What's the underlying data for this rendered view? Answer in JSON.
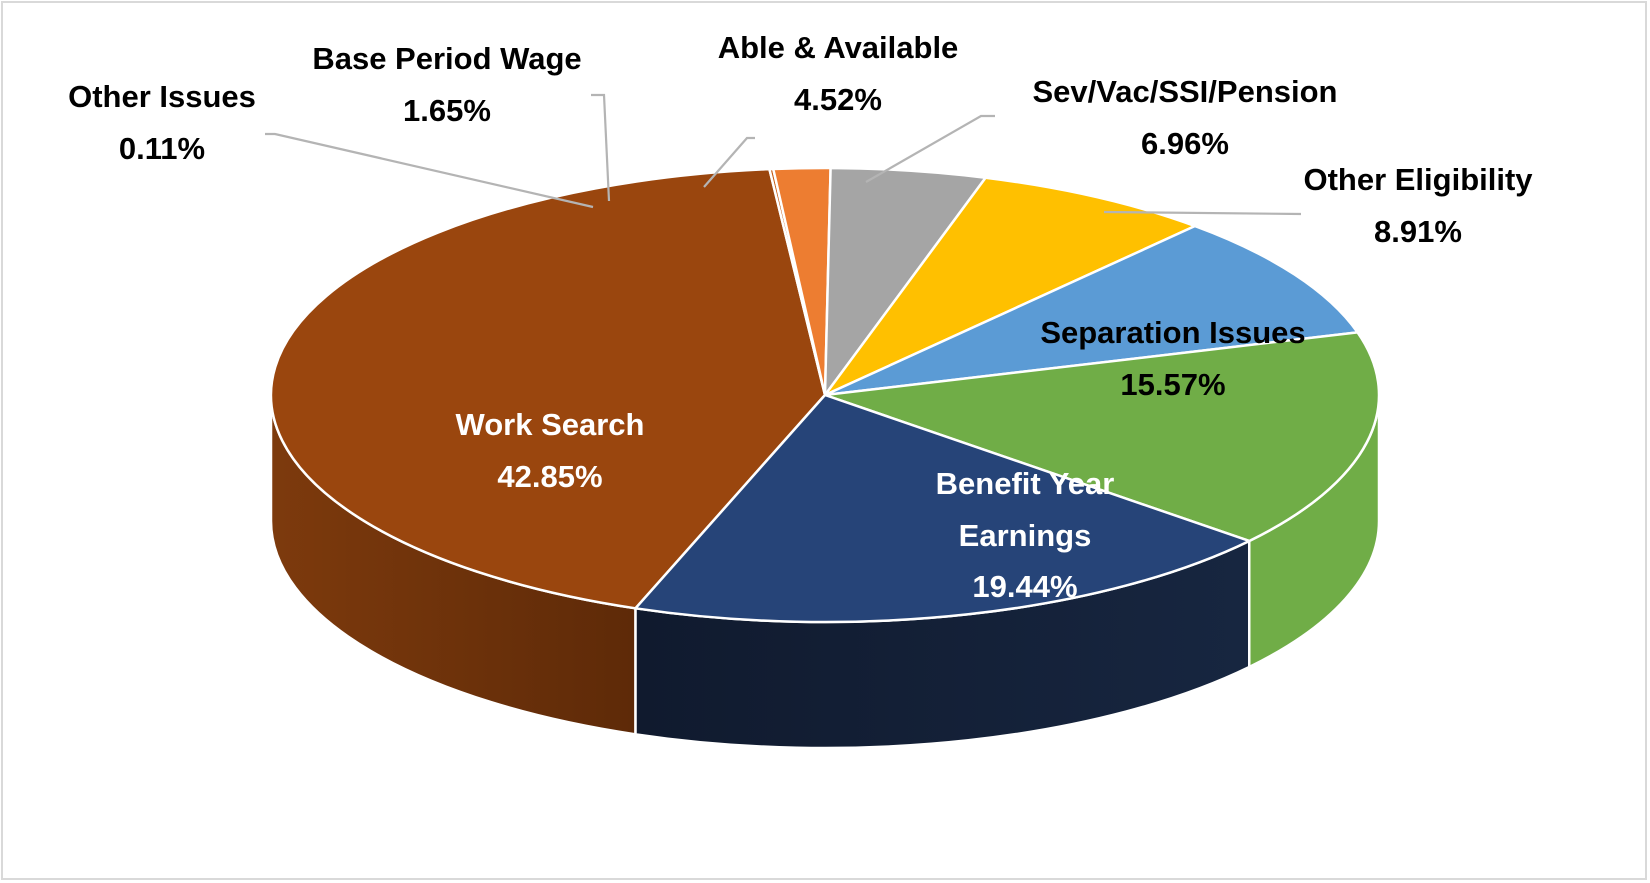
{
  "chart_data": {
    "type": "pie",
    "style": "3d-exploded-perspective",
    "title": "",
    "slices": [
      {
        "label": "Work Search",
        "value": 42.85,
        "display": "42.85%",
        "color": "#9a460e",
        "label_color": "#ffffff"
      },
      {
        "label": "Other Issues",
        "value": 0.11,
        "display": "0.11%",
        "color": "#c55a11",
        "label_color": "#000000"
      },
      {
        "label": "Base Period Wage",
        "value": 1.65,
        "display": "1.65%",
        "color": "#ed7d31",
        "label_color": "#000000"
      },
      {
        "label": "Able & Available",
        "value": 4.52,
        "display": "4.52%",
        "color": "#a5a5a5",
        "label_color": "#000000"
      },
      {
        "label": "Sev/Vac/SSI/Pension",
        "value": 6.96,
        "display": "6.96%",
        "color": "#ffc000",
        "label_color": "#000000"
      },
      {
        "label": "Other Eligibility",
        "value": 8.91,
        "display": "8.91%",
        "color": "#5b9bd5",
        "label_color": "#000000"
      },
      {
        "label": "Separation Issues",
        "value": 15.57,
        "display": "15.57%",
        "color": "#70ad47",
        "label_color": "#000000"
      },
      {
        "label": "Benefit Year Earnings",
        "value": 19.44,
        "display": "19.44%",
        "color": "#264478",
        "label_color": "#ffffff"
      }
    ]
  }
}
